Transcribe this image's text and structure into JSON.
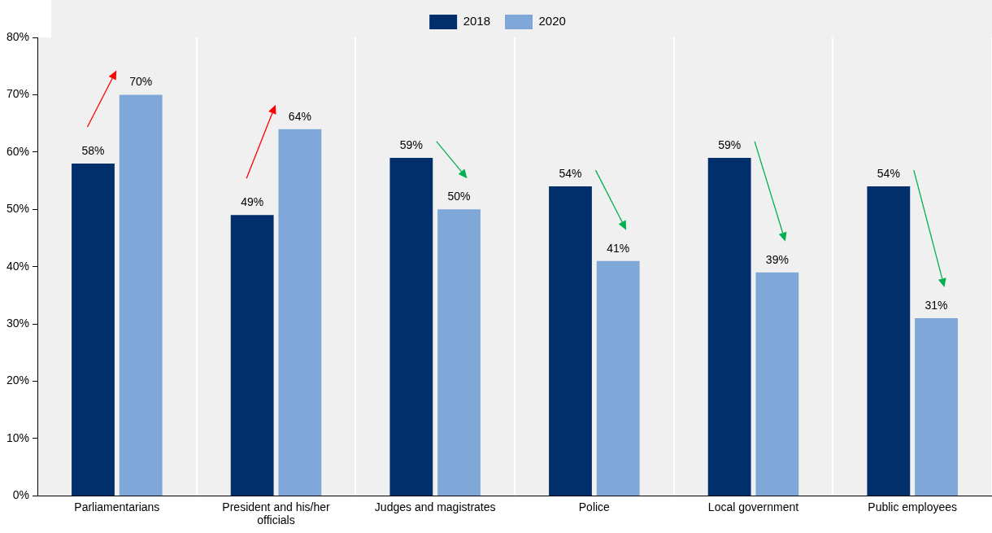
{
  "chart_data": {
    "type": "bar",
    "categories": [
      "Parliamentarians",
      "President and his/her officials",
      "Judges and magistrates",
      "Police",
      "Local government",
      "Public employees"
    ],
    "series": [
      {
        "name": "2018",
        "color": "#002f6c",
        "values": [
          58,
          49,
          59,
          54,
          59,
          54
        ]
      },
      {
        "name": "2020",
        "color": "#7fa8d9",
        "values": [
          70,
          64,
          50,
          41,
          39,
          31
        ]
      }
    ],
    "ylim": [
      0,
      80
    ],
    "yticks": [
      {
        "value": 0,
        "label": "0%"
      },
      {
        "value": 10,
        "label": "10%"
      },
      {
        "value": 20,
        "label": "20%"
      },
      {
        "value": 30,
        "label": "30%"
      },
      {
        "value": 40,
        "label": "40%"
      },
      {
        "value": 50,
        "label": "50%"
      },
      {
        "value": 60,
        "label": "60%"
      },
      {
        "value": 70,
        "label": "70%"
      },
      {
        "value": 80,
        "label": "80%"
      }
    ],
    "value_labels": [
      [
        "58%",
        "49%",
        "59%",
        "54%",
        "59%",
        "54%"
      ],
      [
        "70%",
        "64%",
        "50%",
        "41%",
        "39%",
        "31%"
      ]
    ],
    "grid": "x",
    "legend": "top"
  }
}
